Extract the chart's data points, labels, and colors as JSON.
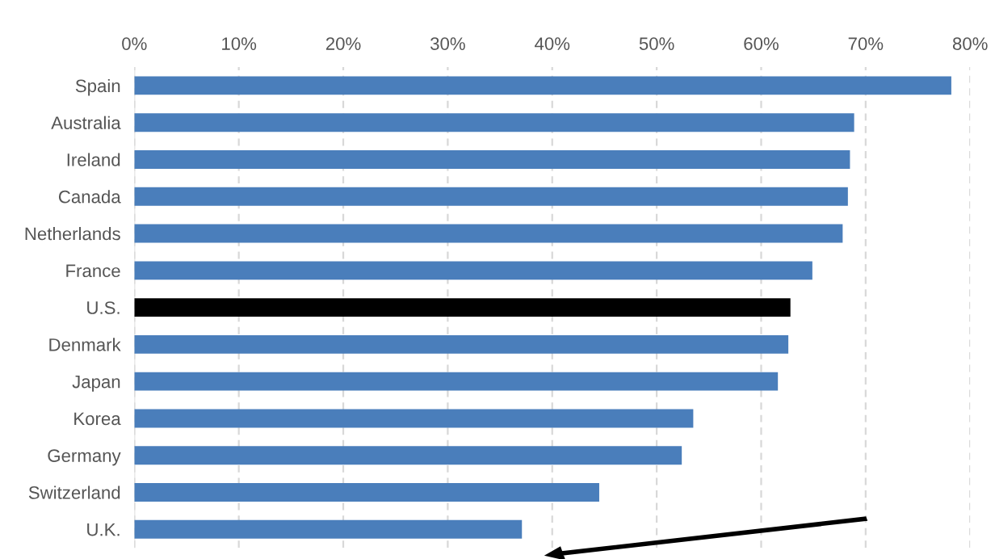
{
  "chart_data": {
    "type": "bar",
    "orientation": "horizontal",
    "categories": [
      "Spain",
      "Australia",
      "Ireland",
      "Canada",
      "Netherlands",
      "France",
      "U.S.",
      "Denmark",
      "Japan",
      "Korea",
      "Germany",
      "Switzerland",
      "U.K."
    ],
    "values": [
      78.2,
      68.9,
      68.5,
      68.3,
      67.8,
      64.9,
      62.8,
      62.6,
      61.6,
      53.5,
      52.4,
      44.5,
      37.1
    ],
    "colors": [
      "#4a7ebb",
      "#4a7ebb",
      "#4a7ebb",
      "#4a7ebb",
      "#4a7ebb",
      "#4a7ebb",
      "#000000",
      "#4a7ebb",
      "#4a7ebb",
      "#4a7ebb",
      "#4a7ebb",
      "#4a7ebb",
      "#4a7ebb"
    ],
    "xlim": [
      0,
      80
    ],
    "xticks": [
      {
        "value": 0,
        "label": "0%"
      },
      {
        "value": 10,
        "label": "10%"
      },
      {
        "value": 20,
        "label": "20%"
      },
      {
        "value": 30,
        "label": "30%"
      },
      {
        "value": 40,
        "label": "40%"
      },
      {
        "value": 50,
        "label": "50%"
      },
      {
        "value": 60,
        "label": "60%"
      },
      {
        "value": 70,
        "label": "70%"
      },
      {
        "value": 80,
        "label": "80%"
      }
    ],
    "grid": "x"
  }
}
